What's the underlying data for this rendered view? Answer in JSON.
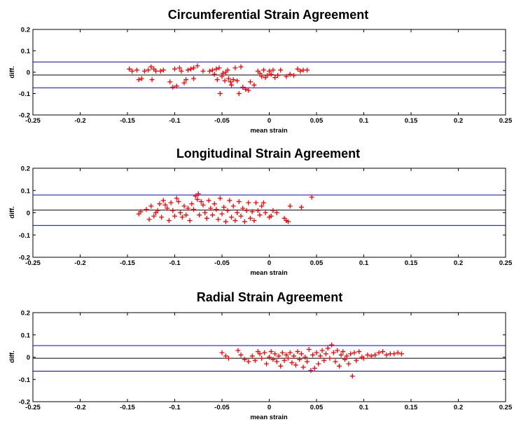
{
  "colors": {
    "points": "#ff0000",
    "limit_lines": "#0000ff",
    "mean_line": "#000000",
    "axes": "#000000",
    "background": "#ffffff"
  },
  "chart_data": [
    {
      "type": "scatter",
      "title": "Circumferential Strain Agreement",
      "xlabel": "mean strain",
      "ylabel": "diff.",
      "xlim": [
        -0.25,
        0.25
      ],
      "ylim": [
        -0.2,
        0.2
      ],
      "xticks": [
        "-0.25",
        "-0.2",
        "-0.15",
        "-0.1",
        "-0.05",
        "0",
        "0.05",
        "0.1",
        "0.15",
        "0.2",
        "0.25"
      ],
      "yticks": [
        "0.2",
        "0.1",
        "0",
        "-0.1",
        "-0.2"
      ],
      "grid": false,
      "marker": "+",
      "hlines": [
        {
          "role": "upper limit of agreement",
          "y": 0.048,
          "color": "#0000ff"
        },
        {
          "role": "mean difference",
          "y": -0.013,
          "color": "#000000"
        },
        {
          "role": "lower limit of agreement",
          "y": -0.073,
          "color": "#0000ff"
        }
      ],
      "series": [
        {
          "points": [
            [
              -0.148,
              0.015
            ],
            [
              -0.145,
              0.005
            ],
            [
              -0.14,
              0.01
            ],
            [
              -0.138,
              -0.035
            ],
            [
              -0.135,
              -0.03
            ],
            [
              -0.132,
              0.005
            ],
            [
              -0.128,
              0.01
            ],
            [
              -0.125,
              0.025
            ],
            [
              -0.124,
              -0.035
            ],
            [
              -0.122,
              0.015
            ],
            [
              -0.12,
              0.005
            ],
            [
              -0.115,
              0.005
            ],
            [
              -0.112,
              0.01
            ],
            [
              -0.105,
              -0.045
            ],
            [
              -0.102,
              -0.07
            ],
            [
              -0.1,
              0.015
            ],
            [
              -0.098,
              -0.065
            ],
            [
              -0.095,
              0.02
            ],
            [
              -0.093,
              0.005
            ],
            [
              -0.09,
              -0.05
            ],
            [
              -0.088,
              -0.035
            ],
            [
              -0.086,
              0.01
            ],
            [
              -0.083,
              0.015
            ],
            [
              -0.08,
              0.02
            ],
            [
              -0.08,
              -0.03
            ],
            [
              -0.076,
              0.03
            ],
            [
              -0.07,
              0.005
            ],
            [
              -0.063,
              0.005
            ],
            [
              -0.06,
              0.01
            ],
            [
              -0.058,
              -0.01
            ],
            [
              -0.056,
              0.015
            ],
            [
              -0.055,
              -0.035
            ],
            [
              -0.053,
              0.02
            ],
            [
              -0.052,
              -0.1
            ],
            [
              -0.05,
              -0.02
            ],
            [
              -0.049,
              -0.005
            ],
            [
              -0.047,
              -0.04
            ],
            [
              -0.046,
              0.0
            ],
            [
              -0.044,
              0.01
            ],
            [
              -0.043,
              -0.03
            ],
            [
              -0.041,
              -0.045
            ],
            [
              -0.04,
              -0.06
            ],
            [
              -0.038,
              -0.035
            ],
            [
              -0.036,
              0.02
            ],
            [
              -0.034,
              -0.04
            ],
            [
              -0.032,
              -0.1
            ],
            [
              -0.03,
              0.025
            ],
            [
              -0.028,
              -0.07
            ],
            [
              -0.025,
              -0.08
            ],
            [
              -0.022,
              -0.085
            ],
            [
              -0.02,
              -0.045
            ],
            [
              -0.016,
              -0.06
            ],
            [
              -0.012,
              0.005
            ],
            [
              -0.01,
              -0.005
            ],
            [
              -0.008,
              -0.02
            ],
            [
              -0.006,
              0.01
            ],
            [
              -0.004,
              -0.025
            ],
            [
              -0.002,
              -0.015
            ],
            [
              0.0,
              0.005
            ],
            [
              0.002,
              -0.01
            ],
            [
              0.004,
              0.01
            ],
            [
              0.006,
              -0.025
            ],
            [
              0.009,
              -0.015
            ],
            [
              0.012,
              0.01
            ],
            [
              0.018,
              -0.02
            ],
            [
              0.022,
              -0.01
            ],
            [
              0.026,
              -0.015
            ],
            [
              0.03,
              0.015
            ],
            [
              0.033,
              0.005
            ],
            [
              0.036,
              0.01
            ],
            [
              0.04,
              0.01
            ]
          ]
        }
      ]
    },
    {
      "type": "scatter",
      "title": "Longitudinal Strain Agreement",
      "xlabel": "mean strain",
      "ylabel": "diff.",
      "xlim": [
        -0.25,
        0.25
      ],
      "ylim": [
        -0.2,
        0.2
      ],
      "xticks": [
        "-0.25",
        "-0.2",
        "-0.15",
        "-0.1",
        "-0.05",
        "0",
        "0.05",
        "0.1",
        "0.15",
        "0.2",
        "0.25"
      ],
      "yticks": [
        "0.2",
        "0.1",
        "0",
        "-0.1",
        "-0.2"
      ],
      "grid": false,
      "marker": "+",
      "hlines": [
        {
          "role": "upper limit of agreement",
          "y": 0.08,
          "color": "#0000ff"
        },
        {
          "role": "mean difference",
          "y": 0.012,
          "color": "#000000"
        },
        {
          "role": "lower limit of agreement",
          "y": -0.057,
          "color": "#0000ff"
        }
      ],
      "series": [
        {
          "points": [
            [
              -0.138,
              -0.005
            ],
            [
              -0.136,
              0.005
            ],
            [
              -0.13,
              0.015
            ],
            [
              -0.127,
              -0.03
            ],
            [
              -0.125,
              0.03
            ],
            [
              -0.122,
              -0.015
            ],
            [
              -0.12,
              0.0
            ],
            [
              -0.118,
              0.01
            ],
            [
              -0.116,
              0.04
            ],
            [
              -0.114,
              -0.02
            ],
            [
              -0.112,
              0.055
            ],
            [
              -0.11,
              0.035
            ],
            [
              -0.108,
              0.02
            ],
            [
              -0.106,
              -0.035
            ],
            [
              -0.104,
              0.045
            ],
            [
              -0.102,
              0.01
            ],
            [
              -0.1,
              -0.015
            ],
            [
              -0.098,
              0.065
            ],
            [
              -0.096,
              0.05
            ],
            [
              -0.094,
              0.0
            ],
            [
              -0.092,
              -0.02
            ],
            [
              -0.09,
              0.03
            ],
            [
              -0.088,
              -0.01
            ],
            [
              -0.086,
              0.02
            ],
            [
              -0.084,
              -0.035
            ],
            [
              -0.082,
              0.04
            ],
            [
              -0.08,
              0.015
            ],
            [
              -0.078,
              0.075
            ],
            [
              -0.076,
              0.06
            ],
            [
              -0.075,
              0.085
            ],
            [
              -0.074,
              -0.01
            ],
            [
              -0.072,
              0.05
            ],
            [
              -0.07,
              0.035
            ],
            [
              -0.068,
              0.0
            ],
            [
              -0.066,
              -0.025
            ],
            [
              -0.064,
              0.055
            ],
            [
              -0.062,
              0.02
            ],
            [
              -0.06,
              -0.01
            ],
            [
              -0.058,
              0.04
            ],
            [
              -0.056,
              0.015
            ],
            [
              -0.054,
              -0.03
            ],
            [
              -0.052,
              0.065
            ],
            [
              -0.05,
              -0.005
            ],
            [
              -0.048,
              0.025
            ],
            [
              -0.046,
              -0.04
            ],
            [
              -0.044,
              0.01
            ],
            [
              -0.042,
              0.055
            ],
            [
              -0.04,
              -0.02
            ],
            [
              -0.038,
              0.03
            ],
            [
              -0.036,
              -0.035
            ],
            [
              -0.034,
              0.0
            ],
            [
              -0.032,
              0.05
            ],
            [
              -0.03,
              -0.015
            ],
            [
              -0.028,
              0.02
            ],
            [
              -0.026,
              -0.04
            ],
            [
              -0.024,
              0.01
            ],
            [
              -0.022,
              0.045
            ],
            [
              -0.02,
              -0.025
            ],
            [
              -0.018,
              0.005
            ],
            [
              -0.016,
              -0.035
            ],
            [
              -0.014,
              0.045
            ],
            [
              -0.012,
              0.01
            ],
            [
              -0.01,
              -0.01
            ],
            [
              -0.008,
              0.03
            ],
            [
              -0.006,
              0.045
            ],
            [
              -0.004,
              0.0
            ],
            [
              0.0,
              -0.02
            ],
            [
              0.002,
              -0.015
            ],
            [
              0.004,
              0.01
            ],
            [
              0.008,
              0.0
            ],
            [
              0.016,
              -0.025
            ],
            [
              0.018,
              -0.035
            ],
            [
              0.02,
              -0.04
            ],
            [
              0.022,
              0.03
            ],
            [
              0.034,
              0.025
            ],
            [
              0.045,
              0.07
            ]
          ]
        }
      ]
    },
    {
      "type": "scatter",
      "title": "Radial Strain Agreement",
      "xlabel": "mean strain",
      "ylabel": "diff.",
      "xlim": [
        -0.25,
        0.25
      ],
      "ylim": [
        -0.2,
        0.2
      ],
      "xticks": [
        "-0.25",
        "-0.2",
        "-0.15",
        "-0.1",
        "-0.05",
        "0",
        "0.05",
        "0.1",
        "0.15",
        "0.2",
        "0.25"
      ],
      "yticks": [
        "0.2",
        "0.1",
        "0",
        "-0.1",
        "-0.2"
      ],
      "grid": false,
      "marker": "+",
      "hlines": [
        {
          "role": "upper limit of agreement",
          "y": 0.052,
          "color": "#0000ff"
        },
        {
          "role": "mean difference",
          "y": -0.005,
          "color": "#000000"
        },
        {
          "role": "lower limit of agreement",
          "y": -0.063,
          "color": "#0000ff"
        }
      ],
      "series": [
        {
          "points": [
            [
              -0.05,
              0.02
            ],
            [
              -0.046,
              0.005
            ],
            [
              -0.043,
              -0.005
            ],
            [
              -0.033,
              0.03
            ],
            [
              -0.03,
              0.01
            ],
            [
              -0.026,
              -0.01
            ],
            [
              -0.022,
              -0.02
            ],
            [
              -0.018,
              0.005
            ],
            [
              -0.015,
              -0.015
            ],
            [
              -0.012,
              0.025
            ],
            [
              -0.01,
              0.015
            ],
            [
              -0.008,
              -0.005
            ],
            [
              -0.005,
              0.02
            ],
            [
              -0.003,
              -0.03
            ],
            [
              0.0,
              0.0
            ],
            [
              0.002,
              0.025
            ],
            [
              0.004,
              -0.01
            ],
            [
              0.006,
              0.015
            ],
            [
              0.008,
              -0.02
            ],
            [
              0.01,
              0.005
            ],
            [
              0.012,
              -0.04
            ],
            [
              0.014,
              0.02
            ],
            [
              0.016,
              -0.015
            ],
            [
              0.018,
              0.01
            ],
            [
              0.02,
              -0.005
            ],
            [
              0.022,
              0.02
            ],
            [
              0.024,
              -0.025
            ],
            [
              0.026,
              0.005
            ],
            [
              0.028,
              -0.035
            ],
            [
              0.03,
              0.025
            ],
            [
              0.032,
              -0.01
            ],
            [
              0.034,
              0.015
            ],
            [
              0.036,
              -0.045
            ],
            [
              0.038,
              0.0
            ],
            [
              0.04,
              -0.02
            ],
            [
              0.042,
              0.035
            ],
            [
              0.044,
              -0.06
            ],
            [
              0.046,
              0.01
            ],
            [
              0.048,
              -0.05
            ],
            [
              0.05,
              0.02
            ],
            [
              0.052,
              -0.03
            ],
            [
              0.054,
              0.005
            ],
            [
              0.056,
              0.03
            ],
            [
              0.058,
              -0.015
            ],
            [
              0.06,
              0.015
            ],
            [
              0.062,
              0.04
            ],
            [
              0.064,
              -0.005
            ],
            [
              0.066,
              0.055
            ],
            [
              0.068,
              0.02
            ],
            [
              0.07,
              -0.02
            ],
            [
              0.072,
              0.03
            ],
            [
              0.074,
              -0.04
            ],
            [
              0.076,
              0.01
            ],
            [
              0.078,
              0.025
            ],
            [
              0.08,
              -0.01
            ],
            [
              0.082,
              0.005
            ],
            [
              0.084,
              -0.03
            ],
            [
              0.086,
              0.015
            ],
            [
              0.088,
              -0.085
            ],
            [
              0.09,
              0.02
            ],
            [
              0.092,
              -0.015
            ],
            [
              0.095,
              0.025
            ],
            [
              0.098,
              0.0
            ],
            [
              0.1,
              -0.005
            ],
            [
              0.104,
              0.01
            ],
            [
              0.108,
              0.005
            ],
            [
              0.112,
              0.01
            ],
            [
              0.116,
              0.02
            ],
            [
              0.12,
              0.025
            ],
            [
              0.124,
              0.01
            ],
            [
              0.128,
              0.015
            ],
            [
              0.132,
              0.015
            ],
            [
              0.136,
              0.02
            ],
            [
              0.14,
              0.015
            ]
          ]
        }
      ]
    }
  ]
}
